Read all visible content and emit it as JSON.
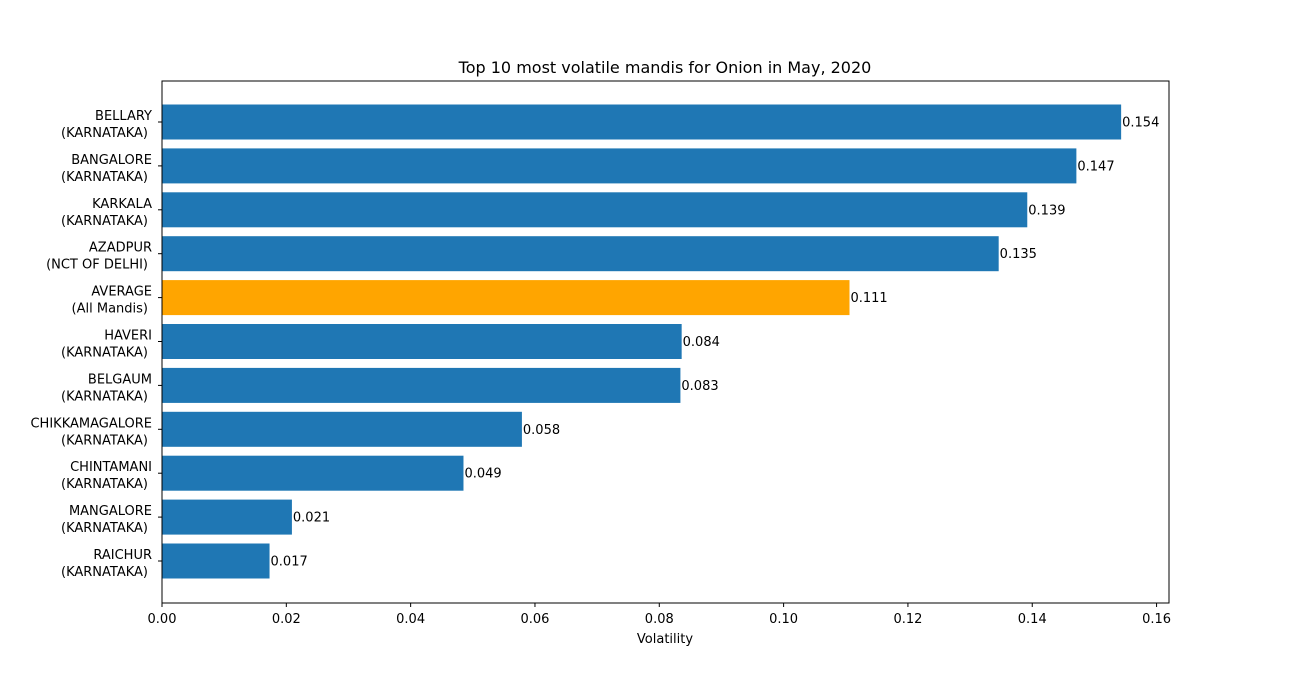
{
  "chart_data": {
    "type": "bar",
    "orientation": "horizontal",
    "title": "Top 10 most volatile mandis for Onion in May, 2020",
    "xlabel": "Volatility",
    "ylabel": "",
    "xlim": [
      0,
      0.162
    ],
    "xticks": [
      "0.00",
      "0.02",
      "0.04",
      "0.06",
      "0.08",
      "0.10",
      "0.12",
      "0.14",
      "0.16"
    ],
    "grid": false,
    "colors": {
      "default": "#1f77b4",
      "highlight": "#ffa500"
    },
    "bars": [
      {
        "line1": "BELLARY",
        "line2": "(KARNATAKA)",
        "value": 0.1543,
        "label": "0.154",
        "highlight": false
      },
      {
        "line1": "BANGALORE",
        "line2": "(KARNATAKA)",
        "value": 0.1471,
        "label": "0.147",
        "highlight": false
      },
      {
        "line1": "KARKALA",
        "line2": "(KARNATAKA)",
        "value": 0.1392,
        "label": "0.139",
        "highlight": false
      },
      {
        "line1": "AZADPUR",
        "line2": "(NCT OF DELHI)",
        "value": 0.1346,
        "label": "0.135",
        "highlight": false
      },
      {
        "line1": "AVERAGE",
        "line2": "(All Mandis)",
        "value": 0.1106,
        "label": "0.111",
        "highlight": true
      },
      {
        "line1": "HAVERI",
        "line2": "(KARNATAKA)",
        "value": 0.0836,
        "label": "0.084",
        "highlight": false
      },
      {
        "line1": "BELGAUM",
        "line2": "(KARNATAKA)",
        "value": 0.0834,
        "label": "0.083",
        "highlight": false
      },
      {
        "line1": "CHIKKAMAGALORE",
        "line2": "(KARNATAKA)",
        "value": 0.0579,
        "label": "0.058",
        "highlight": false
      },
      {
        "line1": "CHINTAMANI",
        "line2": "(KARNATAKA)",
        "value": 0.0485,
        "label": "0.049",
        "highlight": false
      },
      {
        "line1": "MANGALORE",
        "line2": "(KARNATAKA)",
        "value": 0.0209,
        "label": "0.021",
        "highlight": false
      },
      {
        "line1": "RAICHUR",
        "line2": "(KARNATAKA)",
        "value": 0.0173,
        "label": "0.017",
        "highlight": false
      }
    ]
  }
}
